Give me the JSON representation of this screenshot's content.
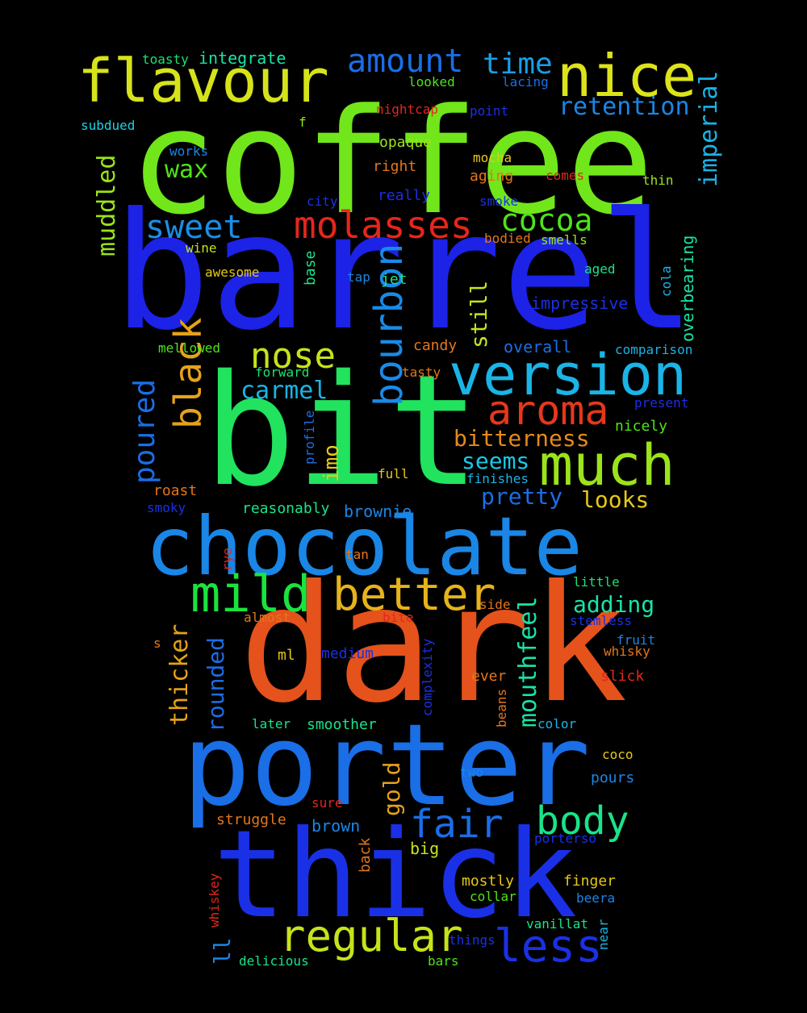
{
  "words": [
    {
      "text": "coffee",
      "color": "#71e61a"
    },
    {
      "text": "barrel",
      "color": "#1c22e6"
    },
    {
      "text": "bit",
      "color": "#21e35e"
    },
    {
      "text": "dark",
      "color": "#e5521b"
    },
    {
      "text": "porter",
      "color": "#1a6ee6"
    },
    {
      "text": "thick",
      "color": "#1a30e6"
    },
    {
      "text": "chocolate",
      "color": "#1a86e6"
    },
    {
      "text": "flavour",
      "color": "#d6e31a"
    },
    {
      "text": "nice",
      "color": "#dde31a"
    },
    {
      "text": "version",
      "color": "#1ab4e6"
    },
    {
      "text": "much",
      "color": "#9be31a"
    },
    {
      "text": "molasses",
      "color": "#e5261b"
    },
    {
      "text": "mild",
      "color": "#1ae33e"
    },
    {
      "text": "better",
      "color": "#e5b31a"
    },
    {
      "text": "regular",
      "color": "#c6e31a"
    },
    {
      "text": "aroma",
      "color": "#e5381b"
    },
    {
      "text": "bourbon",
      "color": "#1a8ae6"
    },
    {
      "text": "black",
      "color": "#e5a21a"
    },
    {
      "text": "amount",
      "color": "#1a6ee6"
    },
    {
      "text": "time",
      "color": "#1a9ee6"
    },
    {
      "text": "sweet",
      "color": "#1a8ee6"
    },
    {
      "text": "cocoa",
      "color": "#4ee31a"
    },
    {
      "text": "nose",
      "color": "#c6e31a"
    },
    {
      "text": "body",
      "color": "#1ae38a"
    },
    {
      "text": "fair",
      "color": "#1a6ee6"
    },
    {
      "text": "less",
      "color": "#1a30e6"
    },
    {
      "text": "retention",
      "color": "#1a86e6"
    },
    {
      "text": "imperial",
      "color": "#1ab2e6"
    },
    {
      "text": "muddled",
      "color": "#9be31a"
    },
    {
      "text": "poured",
      "color": "#1a6ee6"
    },
    {
      "text": "wax",
      "color": "#4ee31a"
    },
    {
      "text": "carmel",
      "color": "#1ab4e6"
    },
    {
      "text": "bitterness",
      "color": "#e58a1a"
    },
    {
      "text": "seems",
      "color": "#1ac8e6"
    },
    {
      "text": "pretty",
      "color": "#1a6ee6"
    },
    {
      "text": "looks",
      "color": "#e5c81a"
    },
    {
      "text": "adding",
      "color": "#1ae3a6"
    },
    {
      "text": "mouthfeel",
      "color": "#1ae3a6"
    },
    {
      "text": "rounded",
      "color": "#1a6ee6"
    },
    {
      "text": "thicker",
      "color": "#e5a21a"
    },
    {
      "text": "still",
      "color": "#c6e31a"
    },
    {
      "text": "gold",
      "color": "#e5a21a"
    },
    {
      "text": "overbearing",
      "color": "#1ae3a6"
    },
    {
      "text": "impressive",
      "color": "#1a30e6"
    },
    {
      "text": "integrate",
      "color": "#1ae3a6"
    },
    {
      "text": "toasty",
      "color": "#1ae36e"
    },
    {
      "text": "looked",
      "color": "#4ee31a"
    },
    {
      "text": "lacing",
      "color": "#1a6ee6"
    },
    {
      "text": "nightcap",
      "color": "#e5261b"
    },
    {
      "text": "point",
      "color": "#1a30e6"
    },
    {
      "text": "subdued",
      "color": "#1ad2e6"
    },
    {
      "text": "f",
      "color": "#9be31a"
    },
    {
      "text": "opaque",
      "color": "#9be31a"
    },
    {
      "text": "works",
      "color": "#1a86e6"
    },
    {
      "text": "mocha",
      "color": "#e5c81a"
    },
    {
      "text": "right",
      "color": "#e5761a"
    },
    {
      "text": "aging",
      "color": "#e5761a"
    },
    {
      "text": "comes",
      "color": "#e5261b"
    },
    {
      "text": "thin",
      "color": "#9be31a"
    },
    {
      "text": "city",
      "color": "#1a30e6"
    },
    {
      "text": "really",
      "color": "#1a30e6"
    },
    {
      "text": "smoke",
      "color": "#1a30e6"
    },
    {
      "text": "bodied",
      "color": "#e5761a"
    },
    {
      "text": "smells",
      "color": "#9be31a"
    },
    {
      "text": "wine",
      "color": "#c6e31a"
    },
    {
      "text": "base",
      "color": "#1ae38a"
    },
    {
      "text": "aged",
      "color": "#1ae38a"
    },
    {
      "text": "cola",
      "color": "#1ab4e6"
    },
    {
      "text": "awesome",
      "color": "#e5c81a"
    },
    {
      "text": "tap",
      "color": "#1a86e6"
    },
    {
      "text": "jet",
      "color": "#1ae38a"
    },
    {
      "text": "mellowed",
      "color": "#4ee31a"
    },
    {
      "text": "candy",
      "color": "#e5761a"
    },
    {
      "text": "overall",
      "color": "#1a6ee6"
    },
    {
      "text": "comparison",
      "color": "#1ab4e6"
    },
    {
      "text": "forward",
      "color": "#1ae36e"
    },
    {
      "text": "tasty",
      "color": "#e5761a"
    },
    {
      "text": "present",
      "color": "#1a30e6"
    },
    {
      "text": "nicely",
      "color": "#4ee31a"
    },
    {
      "text": "profile",
      "color": "#1a6ee6"
    },
    {
      "text": "imo",
      "color": "#e5c81a"
    },
    {
      "text": "full",
      "color": "#e5c81a"
    },
    {
      "text": "finishes",
      "color": "#1ab4e6"
    },
    {
      "text": "roast",
      "color": "#e5761a"
    },
    {
      "text": "smoky",
      "color": "#1a30e6"
    },
    {
      "text": "reasonably",
      "color": "#1ae38a"
    },
    {
      "text": "brownie",
      "color": "#1a86e6"
    },
    {
      "text": "tan",
      "color": "#e5761a"
    },
    {
      "text": "rye",
      "color": "#e5261b"
    },
    {
      "text": "little",
      "color": "#1ae36e"
    },
    {
      "text": "side",
      "color": "#e5761a"
    },
    {
      "text": "almost",
      "color": "#e5761a"
    },
    {
      "text": "bite",
      "color": "#e5261b"
    },
    {
      "text": "stemless",
      "color": "#1a30e6"
    },
    {
      "text": "s",
      "color": "#e5761a"
    },
    {
      "text": "fruit",
      "color": "#1a86e6"
    },
    {
      "text": "ml",
      "color": "#e5c81a"
    },
    {
      "text": "medium",
      "color": "#1a30e6"
    },
    {
      "text": "whisky",
      "color": "#e5761a"
    },
    {
      "text": "complexity",
      "color": "#1a30e6"
    },
    {
      "text": "ever",
      "color": "#e5761a"
    },
    {
      "text": "slick",
      "color": "#e5261b"
    },
    {
      "text": "beans",
      "color": "#e5761a"
    },
    {
      "text": "later",
      "color": "#1ae38a"
    },
    {
      "text": "smoother",
      "color": "#1ae38a"
    },
    {
      "text": "color",
      "color": "#1ab4e6"
    },
    {
      "text": "coco",
      "color": "#e5c81a"
    },
    {
      "text": "two",
      "color": "#1a86e6"
    },
    {
      "text": "pours",
      "color": "#1a86e6"
    },
    {
      "text": "sure",
      "color": "#e5261b"
    },
    {
      "text": "struggle",
      "color": "#e5761a"
    },
    {
      "text": "brown",
      "color": "#1a86e6"
    },
    {
      "text": "porterso",
      "color": "#1a30e6"
    },
    {
      "text": "back",
      "color": "#e5761a"
    },
    {
      "text": "big",
      "color": "#c6e31a"
    },
    {
      "text": "mostly",
      "color": "#e5c81a"
    },
    {
      "text": "finger",
      "color": "#e5c81a"
    },
    {
      "text": "collar",
      "color": "#4ee31a"
    },
    {
      "text": "beera",
      "color": "#1a86e6"
    },
    {
      "text": "whiskey",
      "color": "#e5261b"
    },
    {
      "text": "vanillat",
      "color": "#1ae38a"
    },
    {
      "text": "near",
      "color": "#1ab4e6"
    },
    {
      "text": "things",
      "color": "#1a30e6"
    },
    {
      "text": "ll",
      "color": "#1a86e6"
    },
    {
      "text": "delicious",
      "color": "#1ae38a"
    },
    {
      "text": "bars",
      "color": "#4ee31a"
    }
  ]
}
